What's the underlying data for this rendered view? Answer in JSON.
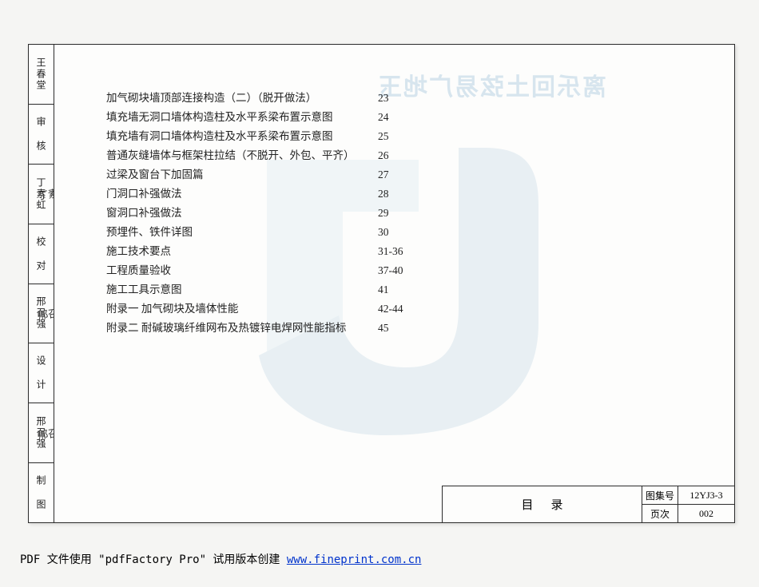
{
  "side": [
    {
      "label": "王春堂",
      "sig": ""
    },
    {
      "label": "审 核",
      "sig": ""
    },
    {
      "label": "丁素虹",
      "sig": "丁素"
    },
    {
      "label": "校 对",
      "sig": ""
    },
    {
      "label": "邢召强",
      "sig": "邢召"
    },
    {
      "label": "设 计",
      "sig": ""
    },
    {
      "label": "邢召强",
      "sig": "邢召"
    },
    {
      "label": "制 图",
      "sig": ""
    }
  ],
  "watermark_text": "离乐回土弦易广地玉",
  "toc": [
    {
      "t": "加气砌块墙顶部连接构造（二）（脱开做法）",
      "p": "23"
    },
    {
      "t": "填充墙无洞口墙体构造柱及水平系梁布置示意图",
      "p": "24"
    },
    {
      "t": "填充墙有洞口墙体构造柱及水平系梁布置示意图",
      "p": "25"
    },
    {
      "t": "普通灰缝墙体与框架柱拉结（不脱开、外包、平齐）",
      "p": "26"
    },
    {
      "t": "过梁及窗台下加固篇",
      "p": "27"
    },
    {
      "t": "门洞口补强做法",
      "p": "28"
    },
    {
      "t": "窗洞口补强做法",
      "p": "29"
    },
    {
      "t": "预埋件、铁件详图",
      "p": "30"
    },
    {
      "t": "施工技术要点",
      "p": "31-36"
    },
    {
      "t": "工程质量验收",
      "p": "37-40"
    },
    {
      "t": "施工工具示意图",
      "p": "41"
    },
    {
      "t": "附录一  加气砌块及墙体性能",
      "p": "42-44"
    },
    {
      "t": "附录二  耐碱玻璃纤维网布及热镀锌电焊网性能指标",
      "p": "45"
    }
  ],
  "titleblock": {
    "title": "目录",
    "set_label": "图集号",
    "set_value": "12YJ3-3",
    "page_label": "页次",
    "page_value": "002"
  },
  "footer": {
    "prefix": "PDF 文件使用 \"pdfFactory Pro\" 试用版本创建 ",
    "link": "www.fineprint.com.cn"
  }
}
